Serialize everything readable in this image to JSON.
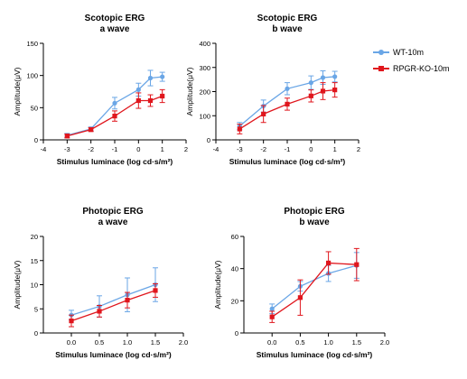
{
  "legend": {
    "items": [
      {
        "label": "WT-10m",
        "color": "#6aa6e6",
        "marker": "circle"
      },
      {
        "label": "RPGR-KO-10m",
        "color": "#e0161d",
        "marker": "square"
      }
    ]
  },
  "chart_data": [
    {
      "type": "line",
      "title": "Scotopic ERG",
      "subtitle": "a wave",
      "xlabel": "Stimulus luminace (log cd·s/m²)",
      "ylabel": "Amplitude(μV)",
      "xlim": [
        -4,
        2
      ],
      "ylim": [
        0,
        150
      ],
      "xticks": [
        "-4",
        "-3",
        "-2",
        "-1",
        "0",
        "1",
        "2"
      ],
      "xtick_values": [
        -4,
        -3,
        -2,
        -1,
        0,
        1,
        2
      ],
      "yticks": [
        "0",
        "50",
        "100",
        "150"
      ],
      "ytick_values": [
        0,
        50,
        100,
        150
      ],
      "series": [
        {
          "name": "WT-10m",
          "color": "#6aa6e6",
          "marker": "circle",
          "x": [
            -3,
            -2,
            -1,
            0,
            0.5,
            1
          ],
          "y": [
            7,
            17,
            57,
            78,
            96,
            98
          ],
          "err": [
            3,
            3,
            9,
            10,
            12,
            7
          ]
        },
        {
          "name": "RPGR-KO-10m",
          "color": "#e0161d",
          "marker": "square",
          "x": [
            -3,
            -2,
            -1,
            0,
            0.5,
            1
          ],
          "y": [
            6,
            16,
            37,
            61,
            61,
            68
          ],
          "err": [
            3,
            3,
            8,
            12,
            9,
            10
          ]
        }
      ]
    },
    {
      "type": "line",
      "title": "Scotopic ERG",
      "subtitle": "b wave",
      "xlabel": "Stimulus luminace (log cd·s/m²)",
      "ylabel": "Amplitude(μV)",
      "xlim": [
        -4,
        2
      ],
      "ylim": [
        0,
        400
      ],
      "xticks": [
        "-4",
        "-3",
        "-2",
        "-1",
        "0",
        "1",
        "2"
      ],
      "xtick_values": [
        -4,
        -3,
        -2,
        -1,
        0,
        1,
        2
      ],
      "yticks": [
        "0",
        "100",
        "200",
        "300",
        "400"
      ],
      "ytick_values": [
        0,
        100,
        200,
        300,
        400
      ],
      "series": [
        {
          "name": "WT-10m",
          "color": "#6aa6e6",
          "marker": "circle",
          "x": [
            -3,
            -2,
            -1,
            0,
            0.5,
            1
          ],
          "y": [
            57,
            140,
            212,
            237,
            258,
            262
          ],
          "err": [
            15,
            25,
            25,
            28,
            28,
            22
          ]
        },
        {
          "name": "RPGR-KO-10m",
          "color": "#e0161d",
          "marker": "square",
          "x": [
            -3,
            -2,
            -1,
            0,
            0.5,
            1
          ],
          "y": [
            45,
            107,
            148,
            182,
            202,
            207
          ],
          "err": [
            20,
            35,
            25,
            25,
            35,
            30
          ]
        }
      ]
    },
    {
      "type": "line",
      "title": "Photopic ERG",
      "subtitle": "a wave",
      "xlabel": "Stimulus luminace (log cd·s/m²)",
      "ylabel": "Amplitude(μV)",
      "xlim": [
        -0.5,
        2
      ],
      "ylim": [
        0,
        20
      ],
      "xticks": [
        "0.0",
        "0.5",
        "1.0",
        "1.5",
        "2.0"
      ],
      "xtick_values": [
        0,
        0.5,
        1,
        1.5,
        2
      ],
      "yticks": [
        "0",
        "5",
        "10",
        "15",
        "20"
      ],
      "ytick_values": [
        0,
        5,
        10,
        15,
        20
      ],
      "series": [
        {
          "name": "WT-10m",
          "color": "#6aa6e6",
          "marker": "circle",
          "x": [
            0,
            0.5,
            1,
            1.5
          ],
          "y": [
            3.7,
            5.5,
            7.9,
            10
          ],
          "err": [
            1,
            2.2,
            3.5,
            3.5
          ]
        },
        {
          "name": "RPGR-KO-10m",
          "color": "#e0161d",
          "marker": "square",
          "x": [
            0,
            0.5,
            1,
            1.5
          ],
          "y": [
            2.5,
            4.5,
            6.8,
            8.8
          ],
          "err": [
            1.2,
            1.2,
            1.6,
            1.4
          ]
        }
      ]
    },
    {
      "type": "line",
      "title": "Photopic ERG",
      "subtitle": "b wave",
      "xlabel": "Stimulus luminace (log cd·s/m²)",
      "ylabel": "Amplitude(μV)",
      "xlim": [
        -0.5,
        2
      ],
      "ylim": [
        0,
        60
      ],
      "xticks": [
        "0.0",
        "0.5",
        "1.0",
        "1.5",
        "2.0"
      ],
      "xtick_values": [
        0,
        0.5,
        1,
        1.5,
        2
      ],
      "yticks": [
        "0",
        "20",
        "40",
        "60"
      ],
      "ytick_values": [
        0,
        20,
        40,
        60
      ],
      "series": [
        {
          "name": "WT-10m",
          "color": "#6aa6e6",
          "marker": "circle",
          "x": [
            0,
            0.5,
            1,
            1.5
          ],
          "y": [
            15,
            29,
            37,
            42
          ],
          "err": [
            3,
            3,
            5,
            8
          ]
        },
        {
          "name": "RPGR-KO-10m",
          "color": "#e0161d",
          "marker": "square",
          "x": [
            0,
            0.5,
            1,
            1.5
          ],
          "y": [
            10,
            22,
            43.5,
            42.5
          ],
          "err": [
            3.5,
            11,
            7,
            10
          ]
        }
      ]
    }
  ]
}
